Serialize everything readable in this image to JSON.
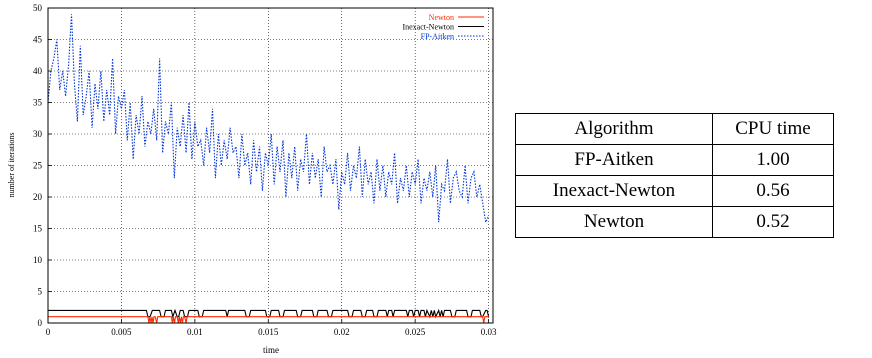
{
  "chart_data": {
    "type": "line",
    "title": "",
    "xlabel": "time",
    "ylabel": "number of iterations",
    "xlim": [
      0,
      0.0303
    ],
    "ylim": [
      0,
      50
    ],
    "x_ticks": [
      "0",
      "0.005",
      "0.01",
      "0.015",
      "0.02",
      "0.025",
      "0.03"
    ],
    "y_ticks": [
      "0",
      "5",
      "10",
      "15",
      "20",
      "25",
      "30",
      "35",
      "40",
      "45",
      "50"
    ],
    "grid": true,
    "legend_position": "top-right",
    "series": [
      {
        "name": "Newton",
        "color": "#ff2a00",
        "style": "solid",
        "x": [
          0,
          0.0068,
          0.00687,
          0.00694,
          0.00701,
          0.00708,
          0.00715,
          0.00722,
          0.0073,
          0.0074,
          0.00747,
          0.00754,
          0.0084,
          0.00847,
          0.00854,
          0.00861,
          0.00868,
          0.0088,
          0.00887,
          0.00894,
          0.00901,
          0.00908,
          0.00915,
          0.00922,
          0.0093,
          0.0094,
          0.00947,
          0.00954,
          0.0296,
          0.02967,
          0.02974,
          0.03
        ],
        "y": [
          1,
          1,
          0,
          1,
          0,
          1,
          0,
          1,
          1,
          0,
          1,
          1,
          1,
          0,
          1,
          0,
          1,
          1,
          0,
          1,
          0,
          1,
          0,
          1,
          1,
          0,
          1,
          1,
          1,
          0,
          1,
          1
        ]
      },
      {
        "name": "Inexact-Newton",
        "color": "#000000",
        "style": "solid",
        "x": [
          0,
          0.0067,
          0.0068,
          0.00695,
          0.0071,
          0.0076,
          0.0077,
          0.0079,
          0.008,
          0.0084,
          0.0085,
          0.00865,
          0.0088,
          0.0089,
          0.009,
          0.0092,
          0.0093,
          0.0095,
          0.0096,
          0.0102,
          0.0103,
          0.0105,
          0.0106,
          0.0121,
          0.0122,
          0.0123,
          0.0134,
          0.0135,
          0.0137,
          0.0138,
          0.0148,
          0.0149,
          0.0151,
          0.0152,
          0.0157,
          0.0158,
          0.016,
          0.0161,
          0.0169,
          0.017,
          0.0172,
          0.0173,
          0.018,
          0.0181,
          0.0183,
          0.0184,
          0.019,
          0.0191,
          0.0193,
          0.0194,
          0.0204,
          0.0205,
          0.0207,
          0.0208,
          0.0213,
          0.0214,
          0.0216,
          0.0217,
          0.0221,
          0.0222,
          0.0224,
          0.0225,
          0.023,
          0.0231,
          0.0232,
          0.0234,
          0.0235,
          0.0236,
          0.0238,
          0.0239,
          0.0244,
          0.0245,
          0.0246,
          0.0248,
          0.0249,
          0.025,
          0.0252,
          0.0253,
          0.0254,
          0.0256,
          0.0257,
          0.0258,
          0.026,
          0.0261,
          0.0262,
          0.0263,
          0.0264,
          0.0266,
          0.0267,
          0.0268,
          0.0269,
          0.027,
          0.0274,
          0.0275,
          0.0277,
          0.0278,
          0.0285,
          0.0286,
          0.0288,
          0.0289,
          0.0294,
          0.0295,
          0.0296,
          0.0298,
          0.0299,
          0.03
        ],
        "y": [
          2,
          2,
          1,
          1,
          2,
          2,
          1,
          1,
          2,
          2,
          1,
          2,
          1,
          1,
          2,
          2,
          1,
          1,
          2,
          2,
          1,
          1,
          2,
          2,
          1,
          2,
          2,
          1,
          1,
          2,
          2,
          1,
          1,
          2,
          2,
          1,
          1,
          2,
          2,
          1,
          1,
          2,
          2,
          1,
          1,
          2,
          2,
          1,
          1,
          2,
          2,
          1,
          1,
          2,
          2,
          1,
          1,
          2,
          2,
          1,
          1,
          2,
          2,
          1,
          2,
          2,
          1,
          2,
          2,
          2,
          2,
          1,
          2,
          2,
          1,
          2,
          2,
          1,
          2,
          2,
          1,
          2,
          1,
          2,
          1,
          2,
          1,
          2,
          1,
          2,
          1,
          2,
          2,
          1,
          1,
          2,
          2,
          1,
          1,
          2,
          2,
          1,
          1,
          2,
          2,
          1
        ],
        "note_removed": null
      },
      {
        "name": "FP-Aitken",
        "color": "#0033dd",
        "style": "dotted",
        "x": [
          0,
          0.0002,
          0.0004,
          0.0006,
          0.0008,
          0.001,
          0.0012,
          0.0014,
          0.0016,
          0.0018,
          0.002,
          0.0022,
          0.0024,
          0.0026,
          0.0028,
          0.003,
          0.0032,
          0.0034,
          0.0036,
          0.0038,
          0.004,
          0.0042,
          0.0044,
          0.0046,
          0.0048,
          0.005,
          0.0052,
          0.0054,
          0.0056,
          0.0058,
          0.006,
          0.0062,
          0.0064,
          0.0066,
          0.0068,
          0.007,
          0.0072,
          0.0074,
          0.0076,
          0.0078,
          0.008,
          0.0082,
          0.0084,
          0.0086,
          0.0088,
          0.009,
          0.0092,
          0.0094,
          0.0096,
          0.0098,
          0.01,
          0.0102,
          0.0104,
          0.0106,
          0.0108,
          0.011,
          0.0112,
          0.0114,
          0.0116,
          0.0118,
          0.012,
          0.0122,
          0.0124,
          0.0126,
          0.0128,
          0.013,
          0.0132,
          0.0134,
          0.0136,
          0.0138,
          0.014,
          0.0142,
          0.0144,
          0.0146,
          0.0148,
          0.015,
          0.0152,
          0.0154,
          0.0156,
          0.0158,
          0.016,
          0.0162,
          0.0164,
          0.0166,
          0.0168,
          0.017,
          0.0172,
          0.0174,
          0.0176,
          0.0178,
          0.018,
          0.0182,
          0.0184,
          0.0186,
          0.0188,
          0.019,
          0.0192,
          0.0194,
          0.0196,
          0.0198,
          0.02,
          0.0202,
          0.0204,
          0.0206,
          0.0208,
          0.021,
          0.0212,
          0.0214,
          0.0216,
          0.0218,
          0.022,
          0.0222,
          0.0224,
          0.0226,
          0.0228,
          0.023,
          0.0232,
          0.0234,
          0.0236,
          0.0238,
          0.024,
          0.0242,
          0.0244,
          0.0246,
          0.0248,
          0.025,
          0.0252,
          0.0254,
          0.0256,
          0.0258,
          0.026,
          0.0262,
          0.0264,
          0.0266,
          0.0268,
          0.027,
          0.0272,
          0.0274,
          0.0276,
          0.0278,
          0.028,
          0.0282,
          0.0284,
          0.0286,
          0.0288,
          0.029,
          0.0292,
          0.0294,
          0.0296,
          0.0298,
          0.03
        ],
        "y": [
          35,
          40,
          42,
          45,
          37,
          40,
          36,
          41,
          49,
          38,
          32,
          44,
          33,
          36,
          40,
          31,
          38,
          34,
          40,
          32,
          37,
          33,
          42,
          30,
          36,
          34,
          37,
          29,
          35,
          26,
          33,
          30,
          36,
          28,
          32,
          30,
          34,
          29,
          42,
          27,
          32,
          30,
          35,
          23,
          31,
          28,
          33,
          27,
          35,
          26,
          32,
          28,
          29,
          25,
          31,
          27,
          34,
          23,
          30,
          25,
          29,
          26,
          31,
          27,
          28,
          23,
          30,
          25,
          27,
          22,
          29,
          24,
          28,
          21,
          27,
          25,
          30,
          22,
          28,
          24,
          29,
          20,
          27,
          23,
          28,
          21,
          26,
          24,
          30,
          22,
          27,
          23,
          26,
          20,
          28,
          24,
          25,
          22,
          26,
          18,
          24,
          22,
          27,
          21,
          25,
          23,
          28,
          20,
          26,
          22,
          24,
          19,
          26,
          21,
          25,
          20,
          24,
          22,
          27,
          19,
          23,
          21,
          25,
          20,
          24,
          22,
          26,
          19,
          23,
          21,
          24,
          20,
          25,
          16,
          22,
          21,
          26,
          19,
          23,
          24,
          21,
          20,
          25,
          19,
          23,
          24,
          20,
          22,
          19,
          16,
          17
        ]
      }
    ]
  },
  "table": {
    "headers": [
      "Algorithm",
      "CPU time"
    ],
    "rows": [
      [
        "FP-Aitken",
        "1.00"
      ],
      [
        "Inexact-Newton",
        "0.56"
      ],
      [
        "Newton",
        "0.52"
      ]
    ]
  }
}
